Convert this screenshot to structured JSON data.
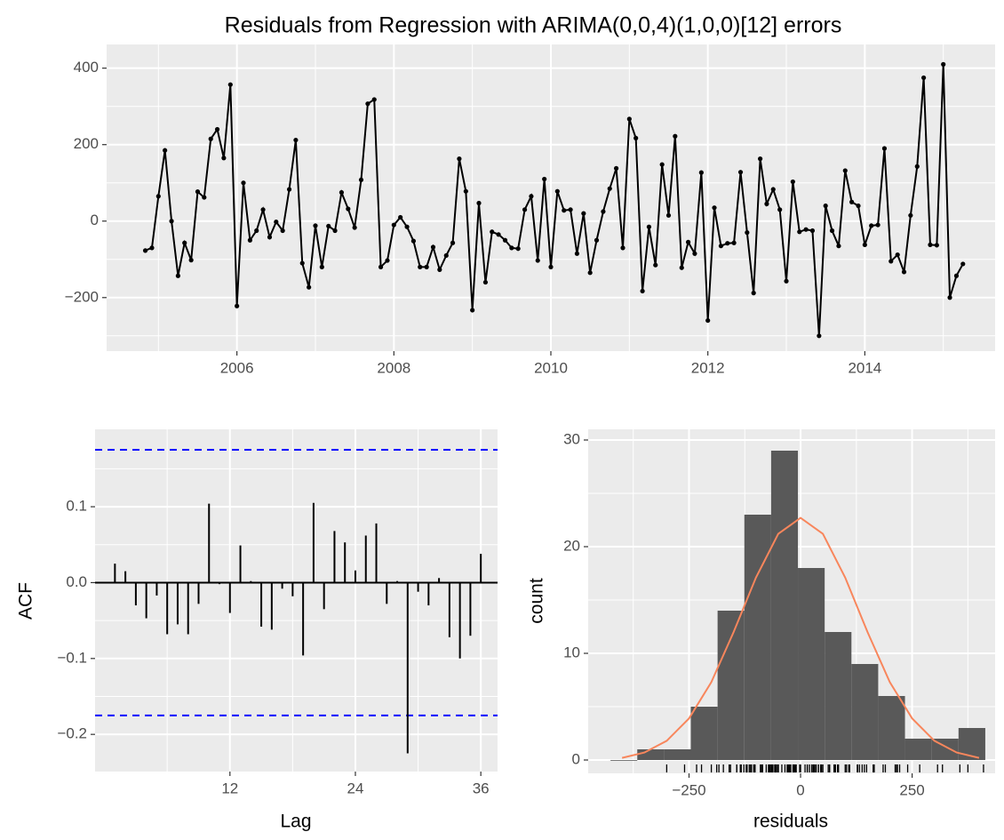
{
  "chart_data": [
    {
      "type": "line",
      "title": "Residuals from Regression with ARIMA(0,0,4)(1,0,0)[12] errors",
      "color": "#000000",
      "x": [
        2004.833,
        2004.917,
        2005,
        2005.083,
        2005.167,
        2005.25,
        2005.333,
        2005.417,
        2005.5,
        2005.583,
        2005.667,
        2005.75,
        2005.833,
        2005.917,
        2006,
        2006.083,
        2006.167,
        2006.25,
        2006.333,
        2006.417,
        2006.5,
        2006.583,
        2006.667,
        2006.75,
        2006.833,
        2006.917,
        2007,
        2007.083,
        2007.167,
        2007.25,
        2007.333,
        2007.417,
        2007.5,
        2007.583,
        2007.667,
        2007.75,
        2007.833,
        2007.917,
        2008,
        2008.083,
        2008.167,
        2008.25,
        2008.333,
        2008.417,
        2008.5,
        2008.583,
        2008.667,
        2008.75,
        2008.833,
        2008.917,
        2009,
        2009.083,
        2009.167,
        2009.25,
        2009.333,
        2009.417,
        2009.5,
        2009.583,
        2009.667,
        2009.75,
        2009.833,
        2009.917,
        2010,
        2010.083,
        2010.167,
        2010.25,
        2010.333,
        2010.417,
        2010.5,
        2010.583,
        2010.667,
        2010.75,
        2010.833,
        2010.917,
        2011,
        2011.083,
        2011.167,
        2011.25,
        2011.333,
        2011.417,
        2011.5,
        2011.583,
        2011.667,
        2011.75,
        2011.833,
        2011.917,
        2012,
        2012.083,
        2012.167,
        2012.25,
        2012.333,
        2012.417,
        2012.5,
        2012.583,
        2012.667,
        2012.75,
        2012.833,
        2012.917,
        2013,
        2013.083,
        2013.167,
        2013.25,
        2013.333,
        2013.417,
        2013.5,
        2013.583,
        2013.667,
        2013.75,
        2013.833,
        2013.917,
        2014,
        2014.083,
        2014.167,
        2014.25,
        2014.333,
        2014.417,
        2014.5,
        2014.583,
        2014.667,
        2014.75,
        2014.833,
        2014.917,
        2015,
        2015.083,
        2015.167,
        2015.25
      ],
      "values": [
        -77,
        -70,
        65,
        185,
        0,
        -143,
        -57,
        -102,
        77,
        62,
        215,
        240,
        165,
        357,
        -222,
        100,
        -50,
        -25,
        30,
        -42,
        -2,
        -25,
        83,
        212,
        -110,
        -173,
        -12,
        -120,
        -13,
        -25,
        75,
        32,
        -17,
        108,
        307,
        318,
        -120,
        -103,
        -10,
        10,
        -15,
        -52,
        -120,
        -120,
        -68,
        -127,
        -90,
        -57,
        163,
        78,
        -233,
        47,
        -160,
        -28,
        -35,
        -50,
        -70,
        -72,
        30,
        65,
        -103,
        110,
        -120,
        78,
        28,
        30,
        -85,
        20,
        -135,
        -50,
        25,
        85,
        138,
        -70,
        267,
        217,
        -183,
        -15,
        -115,
        148,
        15,
        222,
        -122,
        -55,
        -85,
        127,
        -260,
        35,
        -65,
        -58,
        -57,
        128,
        -30,
        -188,
        163,
        45,
        83,
        30,
        -157,
        103,
        -28,
        -22,
        -25,
        -300,
        40,
        -25,
        -65,
        132,
        50,
        40,
        -62,
        -12,
        -10,
        190,
        -105,
        -88,
        -133,
        15,
        143,
        375,
        -62,
        -63,
        410,
        -200,
        -143,
        -112
      ],
      "xlim": [
        2004.34,
        2015.66
      ],
      "xticks": [
        2006,
        2008,
        2010,
        2012,
        2014
      ],
      "ylim": [
        -340,
        462
      ],
      "yticks": [
        {
          "value": -200,
          "label": "−200"
        },
        0,
        200,
        400
      ],
      "grid": true
    },
    {
      "type": "acf",
      "x_label": "Lag",
      "y_label": "ACF",
      "color": "#000000",
      "x": [
        1,
        2,
        3,
        4,
        5,
        6,
        7,
        8,
        9,
        10,
        11,
        12,
        13,
        14,
        15,
        16,
        17,
        18,
        19,
        20,
        21,
        22,
        23,
        24,
        25,
        26,
        27,
        28,
        29,
        30,
        31,
        32,
        33,
        34,
        35,
        36
      ],
      "values": [
        0.025,
        0.015,
        -0.03,
        -0.047,
        -0.017,
        -0.068,
        -0.055,
        -0.068,
        -0.028,
        0.104,
        -0.002,
        -0.04,
        0.049,
        0.002,
        -0.058,
        -0.062,
        -0.008,
        -0.018,
        -0.096,
        0.105,
        -0.035,
        0.068,
        0.053,
        0.016,
        0.062,
        0.078,
        -0.028,
        0.002,
        -0.225,
        -0.012,
        -0.03,
        0.006,
        -0.072,
        -0.1,
        -0.07,
        0.038
      ],
      "ci": [
        0.175,
        -0.175
      ],
      "ci_color": "#0000ff",
      "xlim": [
        -0.9,
        37.6
      ],
      "xticks": [
        12,
        24,
        36
      ],
      "ylim": [
        -0.249,
        0.202
      ],
      "yticks": [
        {
          "value": -0.2,
          "label": "−0.2"
        },
        {
          "value": -0.1,
          "label": "−0.1"
        },
        {
          "value": 0,
          "label": "0.0"
        },
        0.1
      ],
      "grid": true
    },
    {
      "type": "histogram",
      "x_label": "residuals",
      "y_label": "count",
      "color": "#595959",
      "bins": [
        -426,
        -366,
        -306,
        -246,
        -186,
        -126,
        -66,
        -6,
        54,
        114,
        174,
        234,
        294,
        354,
        414
      ],
      "values": [
        0,
        1,
        1,
        5,
        14,
        23,
        29,
        18,
        12,
        9,
        6,
        2,
        2,
        3
      ],
      "density": {
        "color": "#f8865c",
        "x": [
          -400,
          -350,
          -300,
          -250,
          -200,
          -150,
          -100,
          -50,
          0,
          50,
          100,
          150,
          200,
          250,
          300,
          350,
          400
        ],
        "values": [
          0.2,
          0.7,
          1.8,
          3.9,
          7.3,
          12,
          17.1,
          21.2,
          22.7,
          21.2,
          17.1,
          12,
          7.3,
          3.9,
          1.8,
          0.7,
          0.2
        ]
      },
      "rug": true,
      "xlim": [
        -476,
        436
      ],
      "xticks": [
        {
          "value": -250,
          "label": "−250"
        },
        0,
        250
      ],
      "ylim": [
        -1.25,
        31
      ],
      "yticks": [
        0,
        10,
        20,
        30
      ],
      "grid": true
    }
  ]
}
